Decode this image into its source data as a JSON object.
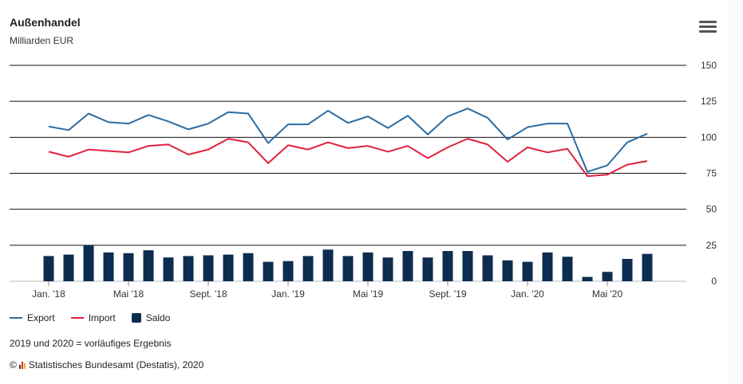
{
  "header": {
    "title": "Außenhandel",
    "subtitle": "Milliarden EUR"
  },
  "menu": {
    "icon": "hamburger-menu-icon"
  },
  "legend": {
    "export_label": "Export",
    "import_label": "Import",
    "saldo_label": "Saldo"
  },
  "footer": {
    "note": "2019 und 2020 = vorläufiges Ergebnis",
    "copyright_symbol": "©",
    "source": "Statistisches Bundesamt (Destatis), 2020",
    "logo_icon": "destatis-logo-icon"
  },
  "colors": {
    "export": "#2b6ca3",
    "import": "#e0213e",
    "saldo": "#0d2c4f",
    "gridline": "#111111"
  },
  "chart_data": {
    "type": "bar",
    "x": [
      "2018-01",
      "2018-02",
      "2018-03",
      "2018-04",
      "2018-05",
      "2018-06",
      "2018-07",
      "2018-08",
      "2018-09",
      "2018-10",
      "2018-11",
      "2018-12",
      "2019-01",
      "2019-02",
      "2019-03",
      "2019-04",
      "2019-05",
      "2019-06",
      "2019-07",
      "2019-08",
      "2019-09",
      "2019-10",
      "2019-11",
      "2019-12",
      "2020-01",
      "2020-02",
      "2020-03",
      "2020-04",
      "2020-05",
      "2020-06",
      "2020-07"
    ],
    "x_tick_labels": [
      {
        "label": "Jan. '18",
        "index": 0
      },
      {
        "label": "Mai '18",
        "index": 4
      },
      {
        "label": "Sept. '18",
        "index": 8
      },
      {
        "label": "Jan. '19",
        "index": 12
      },
      {
        "label": "Mai '19",
        "index": 16
      },
      {
        "label": "Sept. '19",
        "index": 20
      },
      {
        "label": "Jan. '20",
        "index": 24
      },
      {
        "label": "Mai '20",
        "index": 28
      }
    ],
    "y_ticks": [
      "0",
      "25",
      "50",
      "75",
      "100",
      "125",
      "150"
    ],
    "ylim": [
      0,
      150
    ],
    "grid": true,
    "legend_position": "bottom-left",
    "series": [
      {
        "name": "Export",
        "type": "line",
        "values": [
          107.5,
          105,
          116.5,
          110.5,
          109.5,
          115.5,
          111,
          105.5,
          109.5,
          117.5,
          116.5,
          96,
          109,
          109,
          118.5,
          110,
          114.5,
          106.5,
          115,
          102,
          114.5,
          120,
          113.5,
          98.5,
          107,
          109.5,
          109.5,
          76,
          80.5,
          96.5,
          102.5
        ]
      },
      {
        "name": "Import",
        "type": "line",
        "values": [
          90,
          86.5,
          91.5,
          90.5,
          89.5,
          94,
          95,
          88,
          91.5,
          99,
          96.5,
          82,
          94.5,
          91.5,
          96.5,
          92.5,
          94,
          90,
          94,
          85.5,
          93,
          99,
          95,
          83,
          93,
          89.5,
          92,
          73,
          74,
          81,
          83.5
        ]
      },
      {
        "name": "Saldo",
        "type": "bar",
        "values": [
          17.5,
          18.5,
          25,
          20,
          19.5,
          21.5,
          16.5,
          17.5,
          18,
          18.5,
          19.5,
          13.5,
          14,
          17.5,
          22,
          17.5,
          20,
          16.5,
          21,
          16.5,
          21,
          21,
          18,
          14.5,
          13.5,
          20,
          17,
          3,
          6.5,
          15.5,
          19
        ]
      }
    ]
  }
}
